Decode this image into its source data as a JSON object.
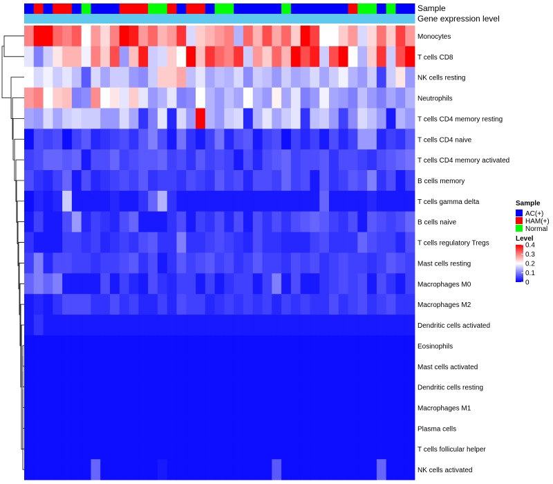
{
  "chart_data": {
    "type": "heatmap",
    "title": "",
    "annotation_rows": [
      {
        "label": "Sample"
      },
      {
        "label": "Gene expression level"
      }
    ],
    "sample_groups": [
      "AC",
      "HAM",
      "AC",
      "HAM",
      "HAM",
      "AC",
      "Normal",
      "AC",
      "AC",
      "AC",
      "HAM",
      "HAM",
      "HAM",
      "Normal",
      "Normal",
      "HAM",
      "AC",
      "HAM",
      "HAM",
      "AC",
      "Normal",
      "Normal",
      "AC",
      "AC",
      "AC",
      "AC",
      "AC",
      "Normal",
      "AC",
      "AC",
      "AC",
      "AC",
      "AC",
      "AC",
      "HAM",
      "Normal",
      "Normal",
      "AC",
      "Normal",
      "AC",
      "AC"
    ],
    "rows": [
      "Monocytes",
      "T cells CD8",
      "NK cells resting",
      "Neutrophils",
      "T cells CD4 memory resting",
      "T cells CD4 naive",
      "T cells CD4 memory activated",
      "B cells memory",
      "T cells gamma delta",
      "B cells naive",
      "T cells regulatory  Tregs",
      "Mast cells resting",
      "Macrophages M0",
      "Macrophages M2",
      "Dendritic cells activated",
      "Eosinophils",
      "Mast cells activated",
      "Dendritic cells resting",
      "Macrophages M1",
      "Plasma cells",
      "T cells follicular helper",
      "NK cells activated"
    ],
    "values": [
      [
        0.3,
        0.4,
        0.4,
        0.32,
        0.3,
        0.33,
        0.2,
        0.28,
        0.23,
        0.3,
        0.4,
        0.38,
        0.28,
        0.32,
        0.26,
        0.28,
        0.36,
        0.17,
        0.24,
        0.26,
        0.28,
        0.3,
        0.14,
        0.32,
        0.26,
        0.34,
        0.27,
        0.32,
        0.24,
        0.4,
        0.35,
        0.2,
        0.2,
        0.24,
        0.28,
        0.17,
        0.23,
        0.31,
        0.24,
        0.35,
        0.28
      ],
      [
        0.18,
        0.1,
        0.16,
        0.22,
        0.26,
        0.26,
        0.19,
        0.3,
        0.24,
        0.34,
        0.12,
        0.25,
        0.38,
        0.16,
        0.17,
        0.24,
        0.2,
        0.4,
        0.25,
        0.36,
        0.32,
        0.3,
        0.36,
        0.16,
        0.28,
        0.24,
        0.32,
        0.26,
        0.4,
        0.34,
        0.38,
        0.16,
        0.34,
        0.4,
        0.2,
        0.14,
        0.24,
        0.36,
        0.16,
        0.34,
        0.4
      ],
      [
        0.2,
        0.17,
        0.19,
        0.16,
        0.18,
        0.15,
        0.07,
        0.17,
        0.13,
        0.16,
        0.16,
        0.12,
        0.11,
        0.16,
        0.24,
        0.24,
        0.27,
        0.15,
        0.18,
        0.13,
        0.15,
        0.14,
        0.17,
        0.11,
        0.16,
        0.15,
        0.12,
        0.16,
        0.13,
        0.14,
        0.17,
        0.13,
        0.16,
        0.19,
        0.14,
        0.12,
        0.16,
        0.05,
        0.16,
        0.22,
        0.12
      ],
      [
        0.28,
        0.3,
        0.2,
        0.24,
        0.25,
        0.1,
        0.11,
        0.29,
        0.2,
        0.22,
        0.18,
        0.24,
        0.18,
        0.12,
        0.14,
        0.18,
        0.1,
        0.11,
        0.2,
        0.14,
        0.12,
        0.15,
        0.13,
        0.2,
        0.14,
        0.12,
        0.21,
        0.13,
        0.18,
        0.1,
        0.12,
        0.19,
        0.13,
        0.12,
        0.1,
        0.15,
        0.12,
        0.1,
        0.13,
        0.11,
        0.14
      ],
      [
        0.13,
        0.12,
        0.17,
        0.13,
        0.16,
        0.17,
        0.16,
        0.16,
        0.12,
        0.12,
        0.17,
        0.13,
        0.04,
        0.1,
        0.18,
        0.03,
        0.17,
        0.12,
        0.4,
        0.14,
        0.12,
        0.16,
        0.17,
        0.03,
        0.14,
        0.18,
        0.13,
        0.16,
        0.18,
        0.04,
        0.15,
        0.16,
        0.12,
        0.05,
        0.11,
        0.17,
        0.15,
        0.12,
        0.02,
        0.14,
        0.12
      ],
      [
        0.01,
        0.06,
        0.05,
        0.06,
        0.01,
        0.05,
        0.07,
        0.03,
        0.04,
        0.05,
        0.06,
        0.04,
        0.07,
        0.1,
        0.06,
        0.02,
        0.09,
        0.04,
        0.02,
        0.05,
        0.09,
        0.03,
        0.06,
        0.07,
        0.02,
        0.05,
        0.06,
        0.01,
        0.05,
        0.03,
        0.05,
        0.02,
        0.06,
        0.03,
        0.05,
        0.12,
        0.12,
        0.03,
        0.05,
        0.04,
        0.07
      ],
      [
        0.05,
        0.06,
        0.08,
        0.08,
        0.07,
        0.08,
        0.02,
        0.06,
        0.06,
        0.08,
        0.05,
        0.06,
        0.07,
        0.07,
        0.08,
        0.05,
        0.06,
        0.04,
        0.07,
        0.05,
        0.06,
        0.05,
        0.02,
        0.06,
        0.03,
        0.06,
        0.07,
        0.08,
        0.05,
        0.06,
        0.06,
        0.07,
        0.04,
        0.06,
        0.06,
        0.05,
        0.04,
        0.06,
        0.07,
        0.08,
        0.09
      ],
      [
        0.06,
        0.04,
        0.03,
        0.05,
        0.08,
        0.02,
        0.06,
        0.03,
        0.04,
        0.05,
        0.06,
        0.05,
        0.07,
        0.04,
        0.05,
        0.05,
        0.04,
        0.06,
        0.05,
        0.04,
        0.07,
        0.05,
        0.06,
        0.03,
        0.06,
        0.06,
        0.05,
        0.08,
        0.05,
        0.06,
        0.02,
        0.07,
        0.04,
        0.05,
        0.07,
        0.06,
        0.1,
        0.04,
        0.06,
        0.02,
        0.05
      ],
      [
        0.01,
        0.03,
        0.02,
        0.03,
        0.16,
        0.02,
        0.02,
        0.02,
        0.02,
        0.03,
        0.02,
        0.02,
        0.04,
        0.08,
        0.14,
        0.04,
        0.02,
        0.02,
        0.02,
        0.02,
        0.02,
        0.02,
        0.02,
        0.02,
        0.02,
        0.02,
        0.02,
        0.02,
        0.02,
        0.02,
        0.02,
        0.08,
        0.02,
        0.02,
        0.02,
        0.02,
        0.03,
        0.02,
        0.02,
        0.02,
        0.02
      ],
      [
        0.02,
        0.05,
        0.02,
        0.02,
        0.06,
        0.12,
        0.03,
        0.05,
        0.04,
        0.03,
        0.06,
        0.08,
        0.02,
        0.02,
        0.02,
        0.04,
        0.06,
        0.02,
        0.05,
        0.04,
        0.06,
        0.03,
        0.06,
        0.02,
        0.06,
        0.04,
        0.06,
        0.04,
        0.06,
        0.07,
        0.08,
        0.07,
        0.05,
        0.04,
        0.06,
        0.02,
        0.07,
        0.06,
        0.05,
        0.06,
        0.08
      ],
      [
        0.04,
        0.02,
        0.02,
        0.02,
        0.05,
        0.05,
        0.04,
        0.05,
        0.03,
        0.04,
        0.05,
        0.04,
        0.06,
        0.07,
        0.04,
        0.04,
        0.1,
        0.04,
        0.04,
        0.05,
        0.06,
        0.05,
        0.04,
        0.03,
        0.06,
        0.04,
        0.04,
        0.03,
        0.03,
        0.03,
        0.05,
        0.06,
        0.04,
        0.04,
        0.04,
        0.08,
        0.06,
        0.05,
        0.05,
        0.03,
        0.06
      ],
      [
        0.05,
        0.1,
        0.03,
        0.06,
        0.06,
        0.05,
        0.05,
        0.04,
        0.05,
        0.05,
        0.06,
        0.07,
        0.04,
        0.06,
        0.02,
        0.04,
        0.07,
        0.05,
        0.06,
        0.07,
        0.05,
        0.06,
        0.04,
        0.05,
        0.07,
        0.05,
        0.05,
        0.04,
        0.06,
        0.05,
        0.06,
        0.04,
        0.05,
        0.06,
        0.05,
        0.05,
        0.04,
        0.05,
        0.07,
        0.06,
        0.05
      ],
      [
        0.08,
        0.1,
        0.08,
        0.1,
        0.02,
        0.02,
        0.02,
        0.02,
        0.06,
        0.02,
        0.05,
        0.03,
        0.02,
        0.06,
        0.04,
        0.03,
        0.05,
        0.05,
        0.02,
        0.05,
        0.02,
        0.04,
        0.05,
        0.05,
        0.02,
        0.05,
        0.1,
        0.02,
        0.06,
        0.02,
        0.02,
        0.04,
        0.05,
        0.06,
        0.05,
        0.06,
        0.02,
        0.06,
        0.04,
        0.02,
        0.05
      ],
      [
        0.02,
        0.03,
        0.02,
        0.04,
        0.06,
        0.06,
        0.06,
        0.04,
        0.04,
        0.06,
        0.04,
        0.05,
        0.03,
        0.03,
        0.05,
        0.03,
        0.06,
        0.05,
        0.05,
        0.03,
        0.04,
        0.05,
        0.04,
        0.05,
        0.04,
        0.05,
        0.03,
        0.05,
        0.04,
        0.05,
        0.04,
        0.04,
        0.06,
        0.04,
        0.05,
        0.06,
        0.04,
        0.05,
        0.06,
        0.04,
        0.04
      ],
      [
        0.02,
        0.04,
        0.02,
        0.02,
        0.02,
        0.02,
        0.02,
        0.02,
        0.02,
        0.02,
        0.02,
        0.02,
        0.02,
        0.02,
        0.02,
        0.02,
        0.02,
        0.02,
        0.02,
        0.02,
        0.02,
        0.02,
        0.02,
        0.02,
        0.02,
        0.02,
        0.02,
        0.02,
        0.02,
        0.02,
        0.02,
        0.02,
        0.02,
        0.02,
        0.02,
        0.02,
        0.02,
        0.02,
        0.02,
        0.02,
        0.02
      ],
      [
        0.01,
        0.01,
        0.01,
        0.01,
        0.01,
        0.01,
        0.01,
        0.01,
        0.01,
        0.01,
        0.01,
        0.01,
        0.01,
        0.01,
        0.01,
        0.01,
        0.01,
        0.01,
        0.01,
        0.01,
        0.01,
        0.01,
        0.01,
        0.01,
        0.01,
        0.01,
        0.01,
        0.01,
        0.01,
        0.01,
        0.01,
        0.01,
        0.01,
        0.01,
        0.01,
        0.01,
        0.01,
        0.01,
        0.01,
        0.01,
        0.01
      ],
      [
        0.01,
        0.01,
        0.01,
        0.01,
        0.01,
        0.01,
        0.01,
        0.01,
        0.01,
        0.01,
        0.01,
        0.01,
        0.01,
        0.01,
        0.01,
        0.01,
        0.01,
        0.01,
        0.01,
        0.01,
        0.01,
        0.01,
        0.01,
        0.01,
        0.01,
        0.01,
        0.01,
        0.01,
        0.01,
        0.01,
        0.01,
        0.01,
        0.01,
        0.01,
        0.01,
        0.01,
        0.01,
        0.01,
        0.01,
        0.01,
        0.01
      ],
      [
        0.01,
        0.01,
        0.01,
        0.01,
        0.01,
        0.01,
        0.01,
        0.01,
        0.01,
        0.01,
        0.01,
        0.01,
        0.01,
        0.01,
        0.01,
        0.01,
        0.01,
        0.01,
        0.01,
        0.01,
        0.01,
        0.01,
        0.01,
        0.01,
        0.01,
        0.01,
        0.01,
        0.01,
        0.01,
        0.01,
        0.01,
        0.01,
        0.01,
        0.01,
        0.01,
        0.01,
        0.01,
        0.01,
        0.01,
        0.01,
        0.01
      ],
      [
        0.01,
        0.01,
        0.01,
        0.01,
        0.01,
        0.01,
        0.01,
        0.01,
        0.01,
        0.01,
        0.01,
        0.01,
        0.01,
        0.01,
        0.01,
        0.01,
        0.01,
        0.01,
        0.01,
        0.01,
        0.01,
        0.01,
        0.01,
        0.01,
        0.01,
        0.01,
        0.01,
        0.01,
        0.01,
        0.01,
        0.01,
        0.01,
        0.01,
        0.01,
        0.01,
        0.01,
        0.01,
        0.01,
        0.01,
        0.01,
        0.01
      ],
      [
        0.01,
        0.01,
        0.01,
        0.01,
        0.01,
        0.01,
        0.01,
        0.01,
        0.01,
        0.01,
        0.01,
        0.01,
        0.01,
        0.01,
        0.01,
        0.01,
        0.01,
        0.01,
        0.01,
        0.01,
        0.01,
        0.01,
        0.01,
        0.01,
        0.01,
        0.01,
        0.01,
        0.01,
        0.01,
        0.01,
        0.01,
        0.01,
        0.01,
        0.01,
        0.01,
        0.01,
        0.01,
        0.01,
        0.01,
        0.01,
        0.01
      ],
      [
        0.01,
        0.01,
        0.01,
        0.01,
        0.01,
        0.01,
        0.01,
        0.01,
        0.01,
        0.01,
        0.01,
        0.01,
        0.01,
        0.01,
        0.01,
        0.01,
        0.01,
        0.01,
        0.01,
        0.01,
        0.01,
        0.01,
        0.01,
        0.01,
        0.01,
        0.01,
        0.01,
        0.01,
        0.01,
        0.01,
        0.01,
        0.01,
        0.01,
        0.01,
        0.01,
        0.01,
        0.01,
        0.01,
        0.01,
        0.01,
        0.01
      ],
      [
        0.01,
        0.01,
        0.01,
        0.01,
        0.01,
        0.01,
        0.01,
        0.08,
        0.01,
        0.01,
        0.01,
        0.01,
        0.01,
        0.01,
        0.02,
        0.01,
        0.01,
        0.01,
        0.01,
        0.01,
        0.01,
        0.01,
        0.01,
        0.01,
        0.01,
        0.01,
        0.07,
        0.01,
        0.01,
        0.01,
        0.01,
        0.01,
        0.01,
        0.01,
        0.01,
        0.01,
        0.01,
        0.08,
        0.01,
        0.01,
        0.01
      ]
    ],
    "color_scale": {
      "min": 0,
      "max": 0.4,
      "stops": [
        {
          "value": 0,
          "color": "#0000ff"
        },
        {
          "value": 0.2,
          "color": "#ffffff"
        },
        {
          "value": 0.4,
          "color": "#ff0000"
        }
      ]
    },
    "gene_expression_color": "#5ec8ee",
    "legends": {
      "sample": {
        "title": "Sample",
        "items": [
          {
            "key": "AC",
            "label": "AC(+)",
            "color": "#0000ff"
          },
          {
            "key": "HAM",
            "label": "HAM(+)",
            "color": "#ff0000"
          },
          {
            "key": "Normal",
            "label": "Normal",
            "color": "#00ff00"
          }
        ]
      },
      "level": {
        "title": "Level",
        "ticks": [
          {
            "value": 0.4,
            "label": "0.4"
          },
          {
            "value": 0.3,
            "label": "0.3"
          },
          {
            "value": 0.2,
            "label": "0.2"
          },
          {
            "value": 0.1,
            "label": "0.1"
          },
          {
            "value": 0,
            "label": "0"
          }
        ]
      }
    }
  }
}
